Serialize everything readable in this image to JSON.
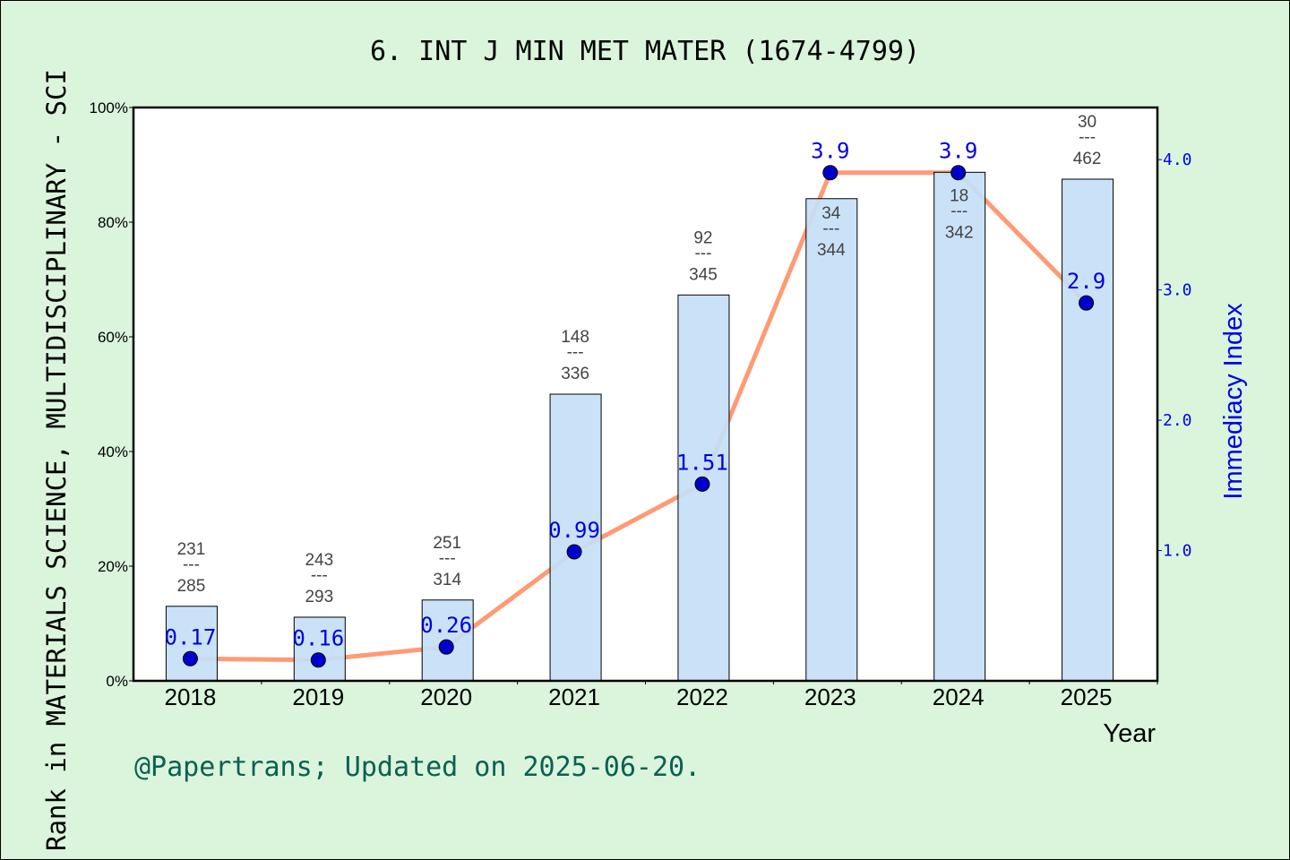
{
  "chart_data": {
    "type": "bar+line",
    "title": "6. INT J MIN MET MATER (1674-4799)",
    "xlabel": "Year",
    "ylabel": "Rank in MATERIALS SCIENCE, MULTIDISCIPLINARY - SCI",
    "y2label": "Immediacy Index",
    "categories": [
      "2018",
      "2019",
      "2020",
      "2021",
      "2022",
      "2023",
      "2024",
      "2025"
    ],
    "ylim": [
      0,
      100
    ],
    "yticks": [
      "0%",
      "20%",
      "40%",
      "60%",
      "80%",
      "100%"
    ],
    "y2lim": [
      0,
      4.4
    ],
    "y2ticks": [
      "1.0",
      "2.0",
      "3.0",
      "4.0"
    ],
    "series": [
      {
        "kind": "bar",
        "unit": "percent",
        "values": [
          13.0,
          11.1,
          14.1,
          50.0,
          67.3,
          84.1,
          88.7,
          87.5
        ],
        "color": "#c5e0f7"
      },
      {
        "kind": "line",
        "values": [
          0.17,
          0.16,
          0.26,
          0.99,
          1.51,
          3.9,
          3.9,
          2.9
        ],
        "labels": [
          "0.17",
          "0.16",
          "0.26",
          "0.99",
          "1.51",
          "3.9",
          "3.9",
          "2.9"
        ],
        "color": "#ff9a74",
        "marker_color": "#0000cc"
      }
    ],
    "rank_labels": [
      {
        "rank": "231",
        "total": "285"
      },
      {
        "rank": "243",
        "total": "293"
      },
      {
        "rank": "251",
        "total": "314"
      },
      {
        "rank": "148",
        "total": "336"
      },
      {
        "rank": "92",
        "total": "345"
      },
      {
        "rank": "34",
        "total": "344"
      },
      {
        "rank": "18",
        "total": "342"
      },
      {
        "rank": "30",
        "total": "462"
      }
    ],
    "rank_separator": "---",
    "grid": false,
    "legend": "none"
  },
  "footer": "@Papertrans; Updated on 2025-06-20."
}
